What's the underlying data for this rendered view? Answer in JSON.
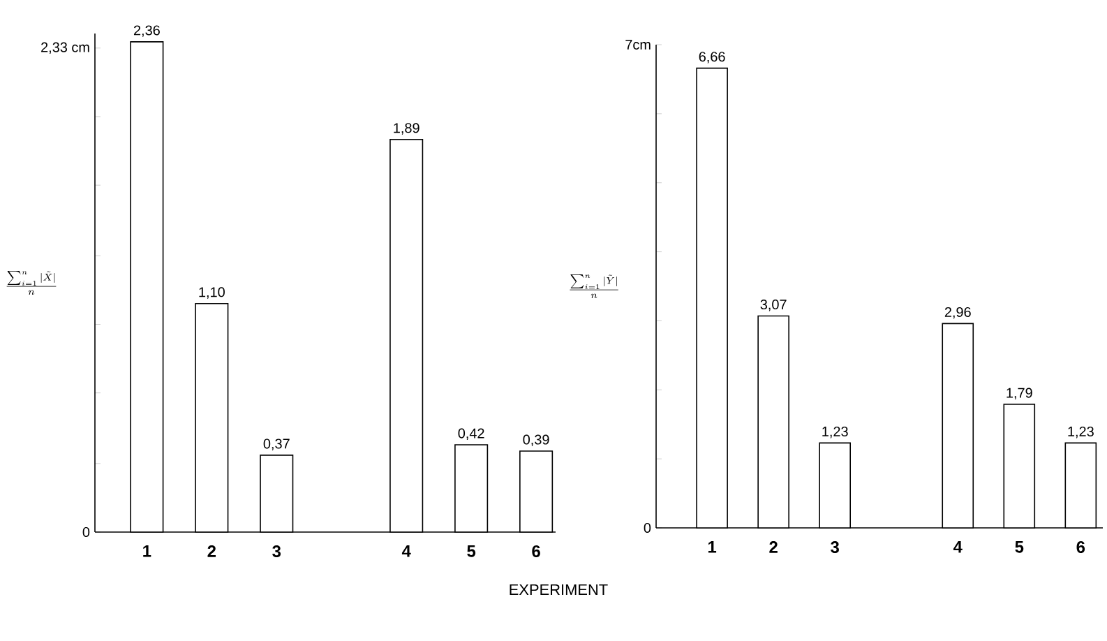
{
  "chart_data": [
    {
      "type": "bar",
      "ylabel": "\\frac{\\sum_{i=1}^{n}|\\tilde{X}|}{n}",
      "xlabel": "EXPERIMENT",
      "categories": [
        "1",
        "2",
        "3",
        null,
        "4",
        "5",
        "6"
      ],
      "values": [
        2.36,
        1.1,
        0.37,
        null,
        1.89,
        0.42,
        0.39
      ],
      "value_labels": [
        "2,36",
        "1,10",
        "0,37",
        null,
        "1,89",
        "0,42",
        "0,39"
      ],
      "color": "#000000",
      "ylim": [
        0,
        2.4
      ],
      "yticks": [
        0,
        {
          "value": 0.33,
          "label": null
        },
        {
          "value": 0.67,
          "label": null
        },
        {
          "value": 1.0,
          "label": null
        },
        {
          "value": 1.33,
          "label": null
        },
        {
          "value": 1.67,
          "label": null
        },
        {
          "value": 2.0,
          "label": null
        },
        {
          "value": 2.33,
          "label": "2,33 cm"
        }
      ]
    },
    {
      "type": "bar",
      "ylabel": "\\frac{\\sum_{i=1}^{n}|\\tilde{Y}|}{n}",
      "categories": [
        "1",
        "2",
        "3",
        null,
        "4",
        "5",
        "6"
      ],
      "values": [
        6.66,
        3.07,
        1.23,
        null,
        2.96,
        1.79,
        1.23
      ],
      "value_labels": [
        "6,66",
        "3,07",
        "1,23",
        null,
        "2,96",
        "1,79",
        "1,23"
      ],
      "color": "#000000",
      "ylim": [
        0,
        7
      ],
      "yticks": [
        0,
        {
          "value": 1,
          "label": null
        },
        {
          "value": 2,
          "label": null
        },
        {
          "value": 3,
          "label": null
        },
        {
          "value": 4,
          "label": null
        },
        {
          "value": 5,
          "label": null
        },
        {
          "value": 6,
          "label": null
        },
        {
          "value": 7,
          "label": "7cm"
        }
      ]
    }
  ]
}
